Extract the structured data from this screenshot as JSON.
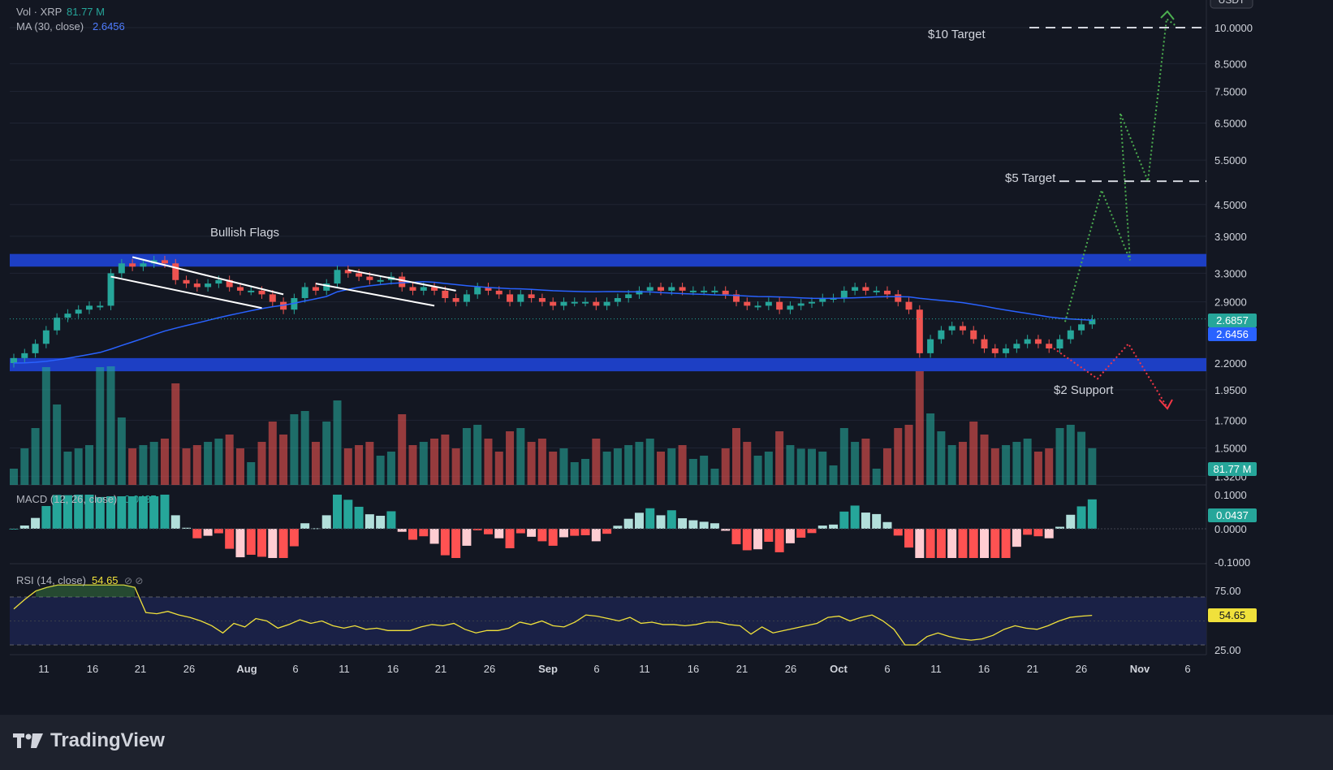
{
  "legend": {
    "vol_label": "Vol · XRP",
    "vol_value": "81.77 M",
    "ma_label": "MA (30, close)",
    "ma_value": "2.6456",
    "macd_label": "MACD (12, 26, close)",
    "macd_value": "0.0437",
    "rsi_label": "RSI (14, close)",
    "rsi_value": "54.65",
    "rsi_icons": "⊘ ⊘"
  },
  "annotations": {
    "bullish_flags": "Bullish Flags",
    "target_10": "$10 Target",
    "target_5": "$5 Target",
    "support_2": "$2 Support"
  },
  "badges": {
    "last_price": "2.6857",
    "ma_price": "2.6456",
    "volume": "81.77 M",
    "macd": "0.0437",
    "rsi": "54.65",
    "top_button": "USDT"
  },
  "brand": {
    "name": "TradingView"
  },
  "colors": {
    "background": "#131722",
    "up": "#26a69a",
    "down": "#ef5350",
    "ma_line": "#2962ff",
    "zone": "#1d3fc4",
    "projection_up": "#4caf50",
    "projection_down": "#f23645",
    "rsi_line": "#f0e13b"
  },
  "chart_data": [
    {
      "type": "candlestick",
      "panel": "price",
      "price_axis_ticks": [
        "10.0000",
        "8.5000",
        "7.5000",
        "6.5000",
        "5.5000",
        "4.5000",
        "3.9000",
        "3.3000",
        "2.9000",
        "2.2000",
        "1.9500",
        "1.7000",
        "1.5000",
        "1.3200"
      ],
      "x_ticks": [
        "11",
        "16",
        "21",
        "26",
        "Aug",
        "6",
        "11",
        "16",
        "21",
        "26",
        "Sep",
        "6",
        "11",
        "16",
        "21",
        "26",
        "Oct",
        "6",
        "11",
        "16",
        "21",
        "26",
        "Nov",
        "6"
      ],
      "candles_close": [
        2.25,
        2.3,
        2.4,
        2.55,
        2.7,
        2.75,
        2.8,
        2.85,
        2.85,
        3.3,
        3.45,
        3.4,
        3.45,
        3.5,
        3.45,
        3.2,
        3.15,
        3.1,
        3.15,
        3.2,
        3.1,
        3.05,
        3.05,
        3.0,
        2.9,
        2.8,
        2.95,
        3.1,
        3.05,
        3.15,
        3.35,
        3.3,
        3.25,
        3.2,
        3.2,
        3.25,
        3.1,
        3.05,
        3.1,
        3.05,
        2.95,
        2.9,
        3.0,
        3.1,
        3.05,
        3.0,
        2.9,
        3.0,
        2.95,
        2.9,
        2.85,
        2.9,
        2.9,
        2.9,
        2.85,
        2.9,
        2.95,
        3.0,
        3.05,
        3.1,
        3.05,
        3.1,
        3.05,
        3.05,
        3.05,
        3.05,
        3.0,
        2.9,
        2.85,
        2.85,
        2.9,
        2.8,
        2.85,
        2.88,
        2.9,
        2.95,
        2.95,
        3.05,
        3.1,
        3.05,
        3.05,
        3.0,
        2.9,
        2.8,
        2.3,
        2.45,
        2.55,
        2.6,
        2.55,
        2.45,
        2.35,
        2.3,
        2.35,
        2.4,
        2.45,
        2.4,
        2.35,
        2.45,
        2.55,
        2.62,
        2.68
      ],
      "ma30_start_end": [
        2.2,
        2.6456
      ],
      "resistance_zone": [
        3.4,
        3.6
      ],
      "support_zone": [
        2.12,
        2.25
      ],
      "projections": [
        {
          "name": "bullish path",
          "points": [
            2.62,
            4.8,
            3.5,
            6.8,
            5.0,
            10.4
          ]
        },
        {
          "name": "bearish path",
          "points": [
            2.35,
            2.05,
            2.4,
            1.8
          ]
        }
      ]
    },
    {
      "type": "bar",
      "panel": "volume",
      "series": [
        {
          "name": "Vol · XRP",
          "last": "81.77 M"
        }
      ]
    },
    {
      "type": "bar",
      "panel": "macd",
      "axis_ticks": [
        "0.1000",
        "0.0000",
        "-0.1000"
      ],
      "last": 0.0437
    },
    {
      "type": "line",
      "panel": "rsi",
      "axis_ticks": [
        "75.00",
        "25.00"
      ],
      "values": [
        60,
        68,
        75,
        78,
        80,
        80,
        80,
        80,
        80,
        80,
        80,
        78,
        57,
        56,
        58,
        55,
        53,
        50,
        46,
        40,
        48,
        45,
        52,
        50,
        44,
        47,
        51,
        48,
        50,
        46,
        44,
        46,
        43,
        44,
        42,
        42,
        42,
        45,
        47,
        46,
        48,
        43,
        40,
        42,
        42,
        44,
        49,
        47,
        50,
        46,
        45,
        49,
        55,
        54,
        52,
        50,
        53,
        48,
        49,
        47,
        47,
        46,
        47,
        49,
        49,
        47,
        46,
        39,
        45,
        40,
        42,
        44,
        46,
        48,
        53,
        54,
        50,
        53,
        55,
        50,
        43,
        30,
        30,
        37,
        40,
        37,
        35,
        34,
        35,
        38,
        43,
        46,
        44,
        43,
        46,
        50,
        53,
        54,
        54.65
      ]
    }
  ]
}
